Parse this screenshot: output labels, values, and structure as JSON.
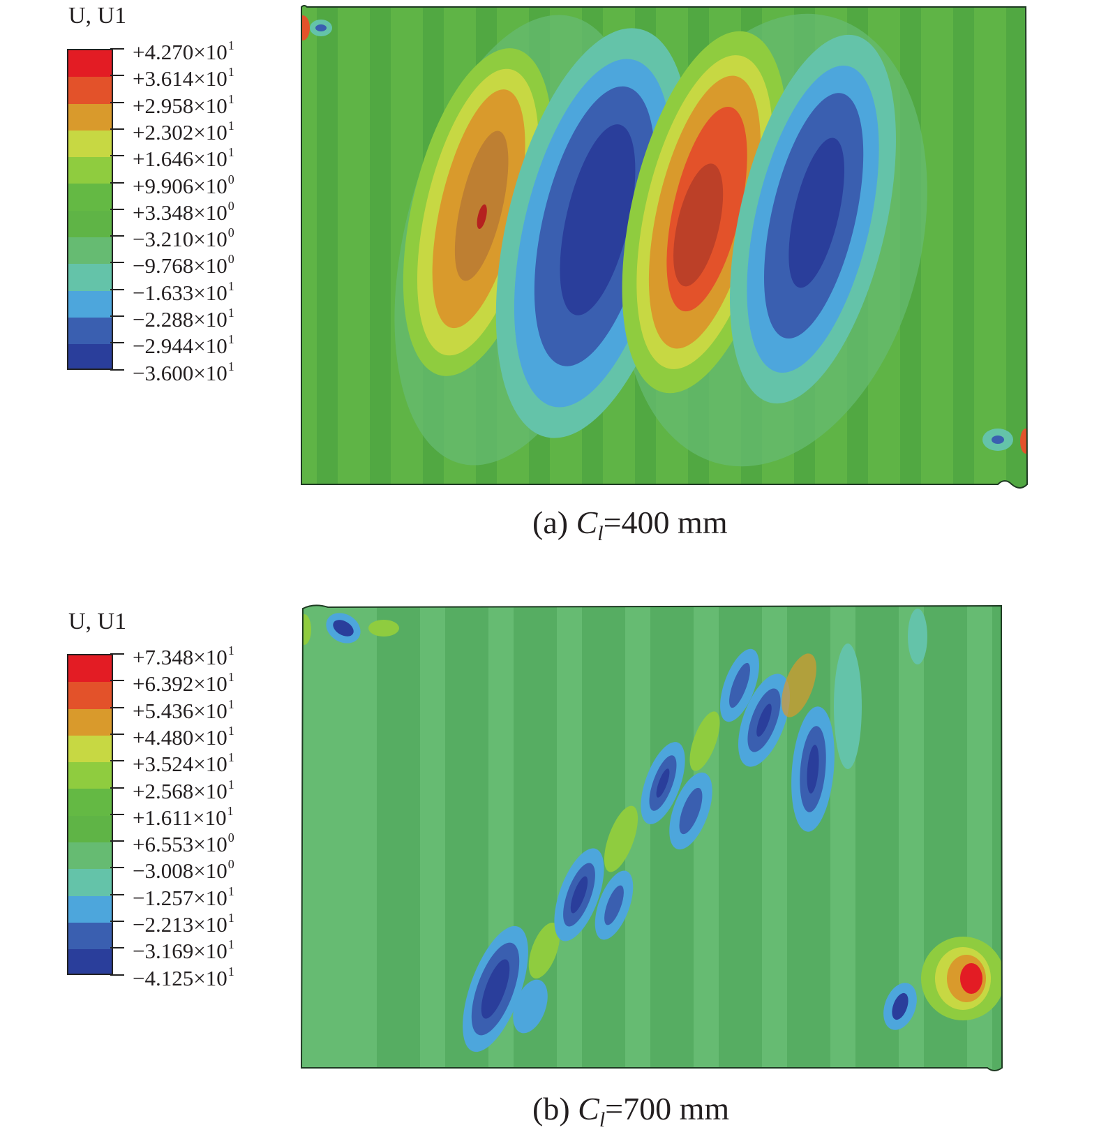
{
  "panels": [
    {
      "legend_title": "U, U1",
      "labels": [
        {
          "sign": "+",
          "mant": "4.270",
          "exp": "1"
        },
        {
          "sign": "+",
          "mant": "3.614",
          "exp": "1"
        },
        {
          "sign": "+",
          "mant": "2.958",
          "exp": "1"
        },
        {
          "sign": "+",
          "mant": "2.302",
          "exp": "1"
        },
        {
          "sign": "+",
          "mant": "1.646",
          "exp": "1"
        },
        {
          "sign": "+",
          "mant": "9.906",
          "exp": "0"
        },
        {
          "sign": "+",
          "mant": "3.348",
          "exp": "0"
        },
        {
          "sign": "−",
          "mant": "3.210",
          "exp": "0"
        },
        {
          "sign": "−",
          "mant": "9.768",
          "exp": "0"
        },
        {
          "sign": "−",
          "mant": "1.633",
          "exp": "1"
        },
        {
          "sign": "−",
          "mant": "2.288",
          "exp": "1"
        },
        {
          "sign": "−",
          "mant": "2.944",
          "exp": "1"
        },
        {
          "sign": "−",
          "mant": "3.600",
          "exp": "1"
        }
      ],
      "caption": {
        "prefix": "(a) ",
        "symbol": "C",
        "subscript": "l",
        "suffix": "=400 mm"
      }
    },
    {
      "legend_title": "U, U1",
      "labels": [
        {
          "sign": "+",
          "mant": "7.348",
          "exp": "1"
        },
        {
          "sign": "+",
          "mant": "6.392",
          "exp": "1"
        },
        {
          "sign": "+",
          "mant": "5.436",
          "exp": "1"
        },
        {
          "sign": "+",
          "mant": "4.480",
          "exp": "1"
        },
        {
          "sign": "+",
          "mant": "3.524",
          "exp": "1"
        },
        {
          "sign": "+",
          "mant": "2.568",
          "exp": "1"
        },
        {
          "sign": "+",
          "mant": "1.611",
          "exp": "1"
        },
        {
          "sign": "+",
          "mant": "6.553",
          "exp": "0"
        },
        {
          "sign": "−",
          "mant": "3.008",
          "exp": "0"
        },
        {
          "sign": "−",
          "mant": "1.257",
          "exp": "1"
        },
        {
          "sign": "−",
          "mant": "2.213",
          "exp": "1"
        },
        {
          "sign": "−",
          "mant": "3.169",
          "exp": "1"
        },
        {
          "sign": "−",
          "mant": "4.125",
          "exp": "1"
        }
      ],
      "caption": {
        "prefix": "(b) ",
        "symbol": "C",
        "subscript": "l",
        "suffix": "=700 mm"
      }
    }
  ],
  "colormap": [
    "#e31c24",
    "#e3522a",
    "#d99a2c",
    "#c7d843",
    "#8fcc3f",
    "#64b944",
    "#5fb446",
    "#66bb72",
    "#64c3a9",
    "#4da6dc",
    "#3a5fb0",
    "#2a3e9b"
  ]
}
